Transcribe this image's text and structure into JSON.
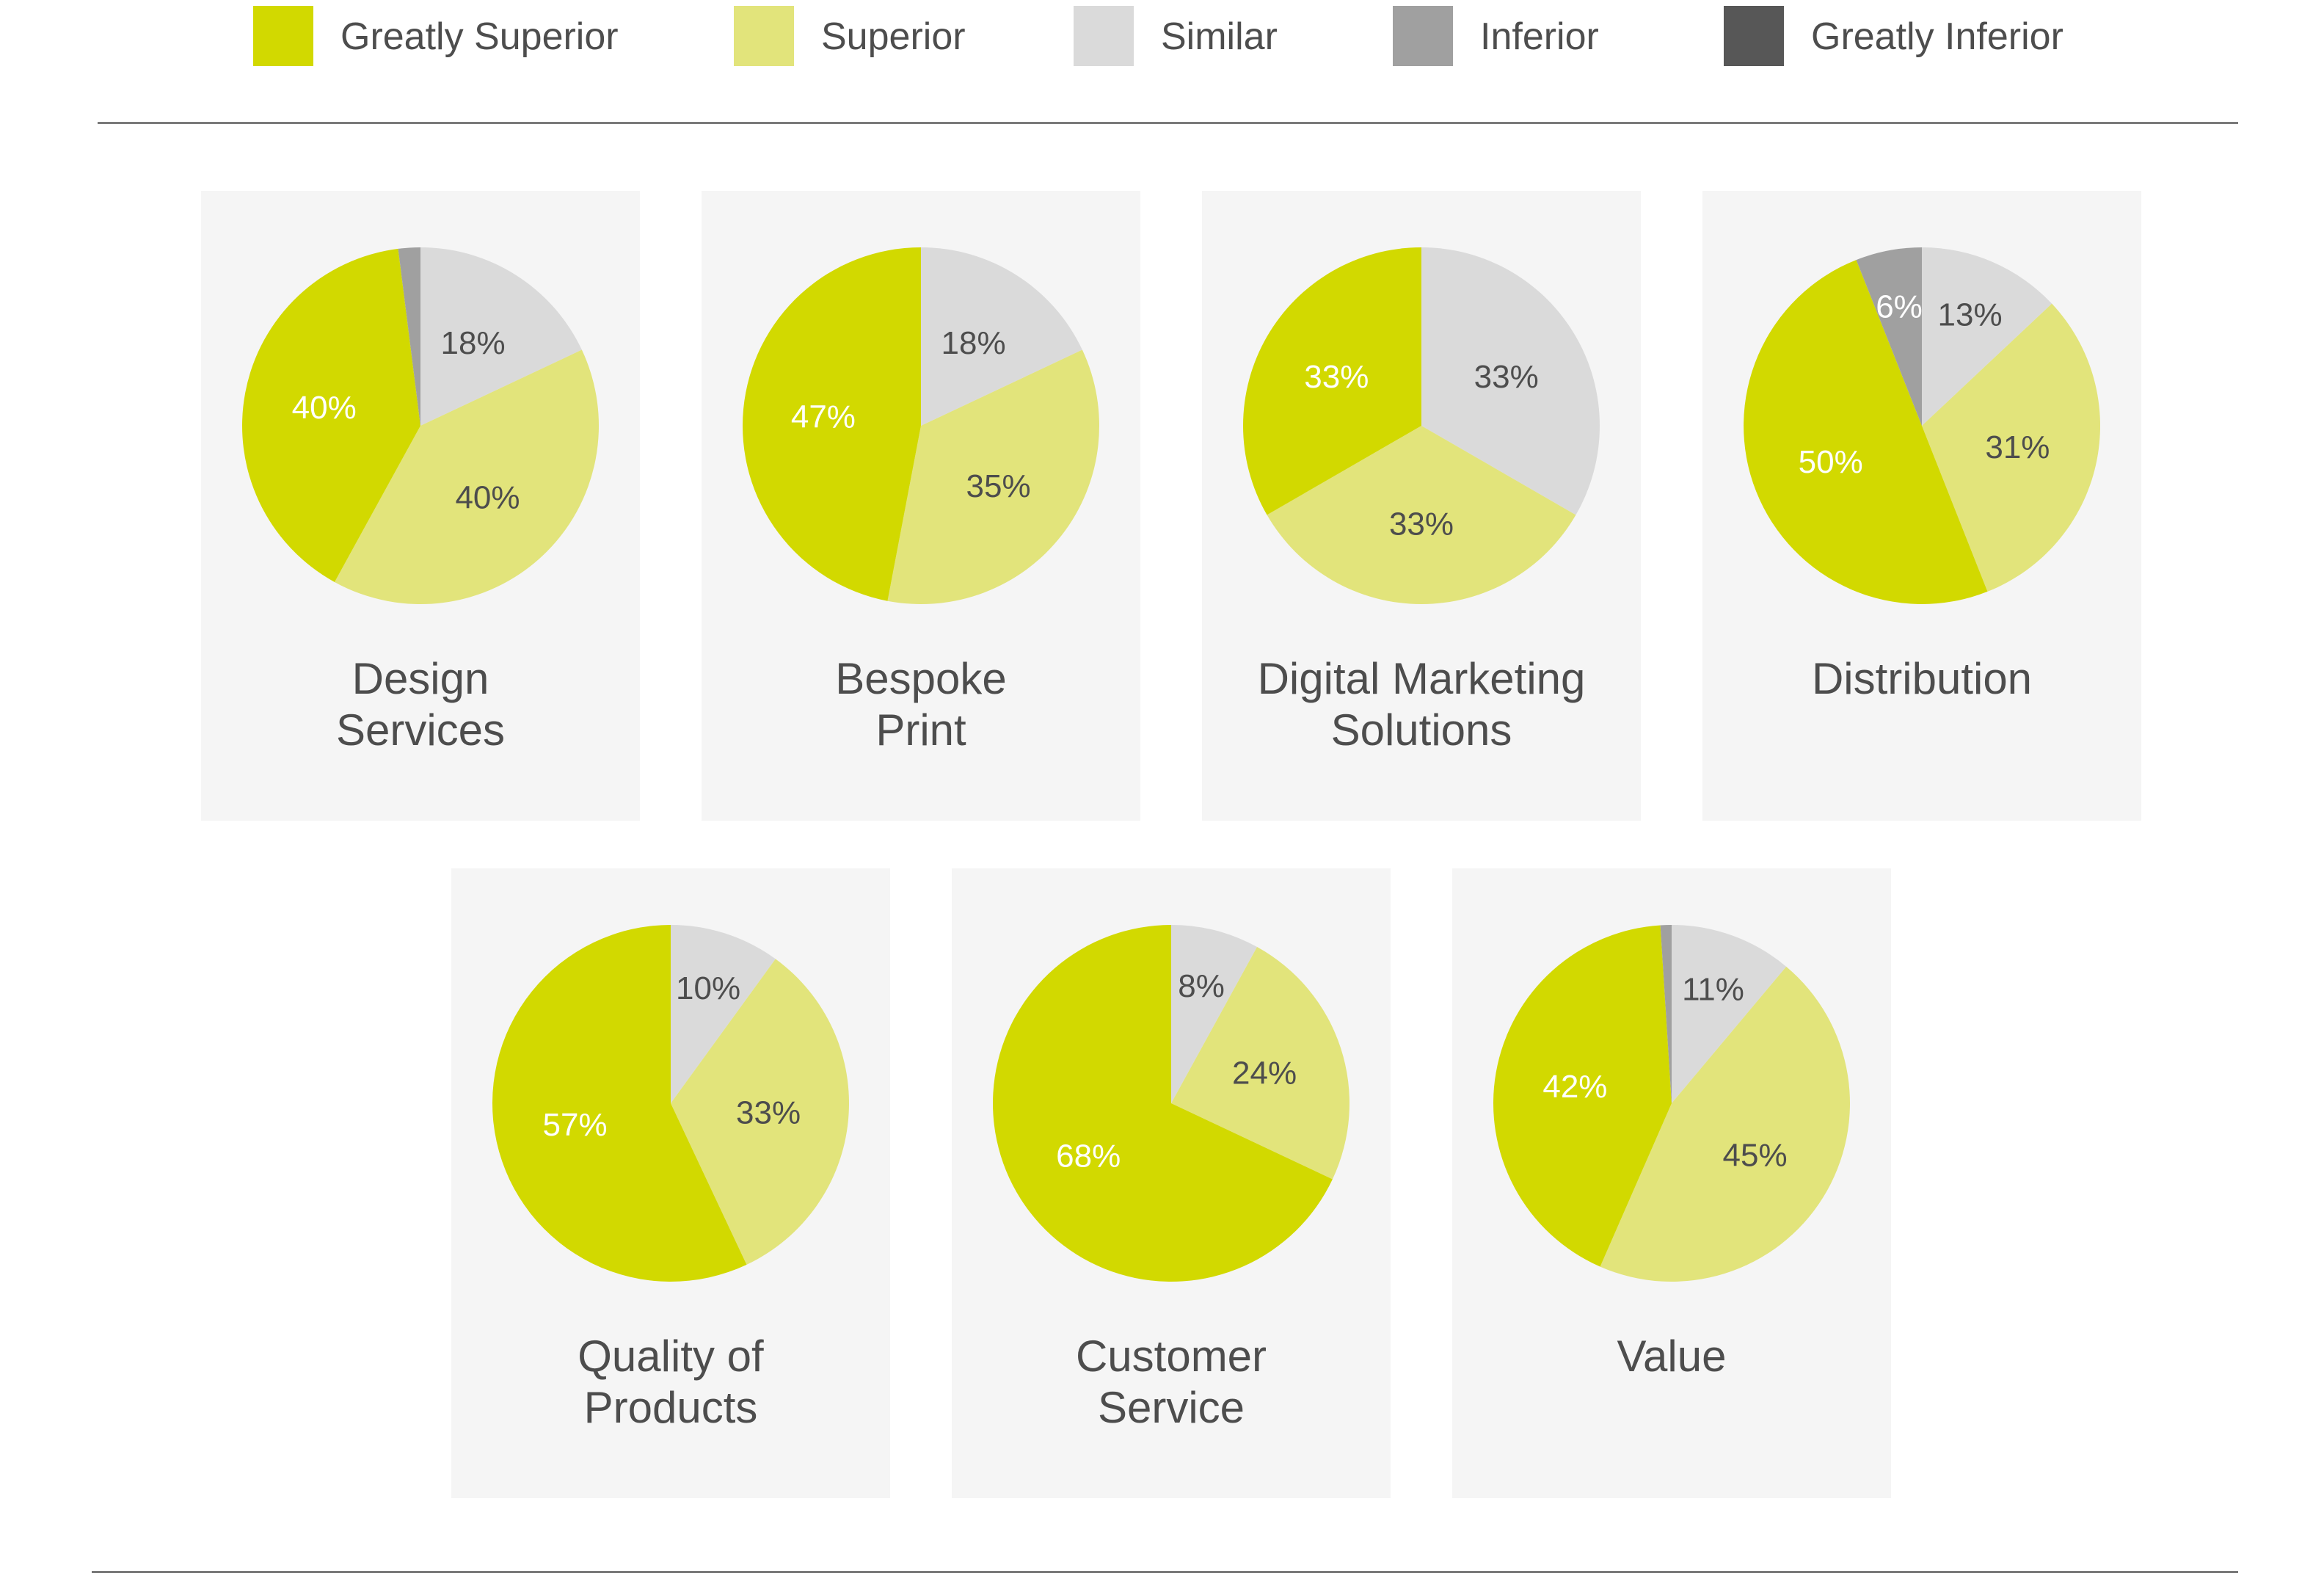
{
  "legend": [
    {
      "label": "Greatly Superior",
      "color": "#d2d900"
    },
    {
      "label": "Superior",
      "color": "#e2e47b"
    },
    {
      "label": "Similar",
      "color": "#dadada"
    },
    {
      "label": "Inferior",
      "color": "#a0a0a0"
    },
    {
      "label": "Greatly Inferior",
      "color": "#575757"
    }
  ],
  "chart_data": [
    {
      "type": "pie",
      "title": "Design\nServices",
      "categories": [
        "Greatly Superior",
        "Superior",
        "Similar",
        "Inferior",
        "Greatly Inferior"
      ],
      "values": [
        40,
        40,
        18,
        2,
        0
      ],
      "labels": [
        "40%",
        "40%",
        "18%",
        "",
        ""
      ]
    },
    {
      "type": "pie",
      "title": "Bespoke\nPrint",
      "categories": [
        "Greatly Superior",
        "Superior",
        "Similar",
        "Inferior",
        "Greatly Inferior"
      ],
      "values": [
        47,
        35,
        18,
        0,
        0
      ],
      "labels": [
        "47%",
        "35%",
        "18%",
        "",
        ""
      ]
    },
    {
      "type": "pie",
      "title": "Digital Marketing\nSolutions",
      "categories": [
        "Greatly Superior",
        "Superior",
        "Similar",
        "Inferior",
        "Greatly Inferior"
      ],
      "values": [
        33,
        33,
        33,
        0,
        0
      ],
      "labels": [
        "33%",
        "33%",
        "33%",
        "",
        ""
      ]
    },
    {
      "type": "pie",
      "title": "Distribution",
      "categories": [
        "Greatly Superior",
        "Superior",
        "Similar",
        "Inferior",
        "Greatly Inferior"
      ],
      "values": [
        50,
        31,
        13,
        6,
        0
      ],
      "labels": [
        "50%",
        "31%",
        "13%",
        "6%",
        ""
      ]
    },
    {
      "type": "pie",
      "title": "Quality of\nProducts",
      "categories": [
        "Greatly Superior",
        "Superior",
        "Similar",
        "Inferior",
        "Greatly Inferior"
      ],
      "values": [
        57,
        33,
        10,
        0,
        0
      ],
      "labels": [
        "57%",
        "33%",
        "10%",
        "",
        ""
      ]
    },
    {
      "type": "pie",
      "title": "Customer\nService",
      "categories": [
        "Greatly Superior",
        "Superior",
        "Similar",
        "Inferior",
        "Greatly Inferior"
      ],
      "values": [
        68,
        24,
        8,
        0,
        0
      ],
      "labels": [
        "68%",
        "24%",
        "8%",
        "",
        ""
      ]
    },
    {
      "type": "pie",
      "title": "Value",
      "categories": [
        "Greatly Superior",
        "Superior",
        "Similar",
        "Inferior",
        "Greatly Inferior"
      ],
      "values": [
        42,
        45,
        11,
        1,
        0
      ],
      "labels": [
        "42%",
        "45%",
        "11%",
        "",
        ""
      ]
    }
  ]
}
